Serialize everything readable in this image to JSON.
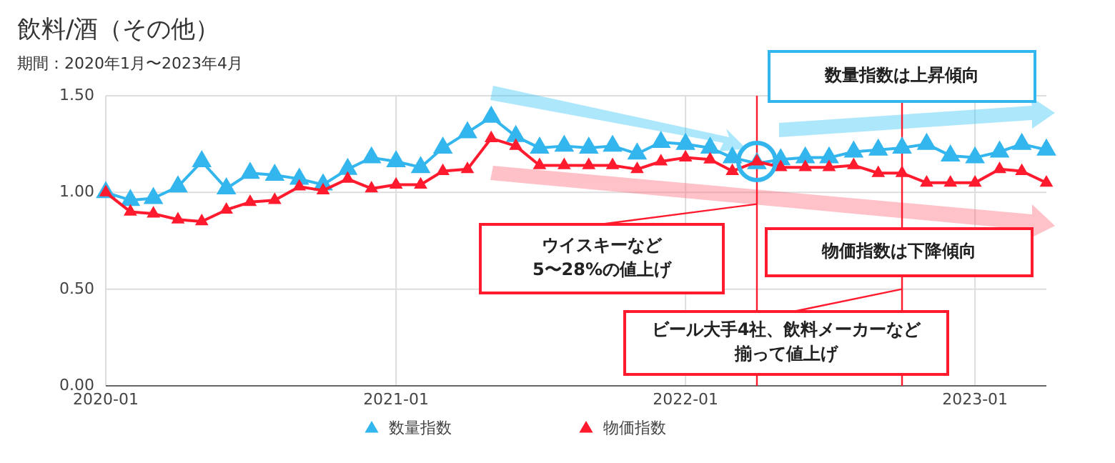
{
  "chart_data": {
    "type": "line",
    "title": "飲料/酒（その他）",
    "subtitle": "期間：2020年1月〜2023年4月",
    "x": [
      "2020-01",
      "2020-02",
      "2020-03",
      "2020-04",
      "2020-05",
      "2020-06",
      "2020-07",
      "2020-08",
      "2020-09",
      "2020-10",
      "2020-11",
      "2020-12",
      "2021-01",
      "2021-02",
      "2021-03",
      "2021-04",
      "2021-05",
      "2021-06",
      "2021-07",
      "2021-08",
      "2021-09",
      "2021-10",
      "2021-11",
      "2021-12",
      "2022-01",
      "2022-02",
      "2022-03",
      "2022-04",
      "2022-05",
      "2022-06",
      "2022-07",
      "2022-08",
      "2022-09",
      "2022-10",
      "2022-11",
      "2022-12",
      "2023-01",
      "2023-02",
      "2023-03",
      "2023-04"
    ],
    "series": [
      {
        "name": "数量指数",
        "color": "#33b5ee",
        "values": [
          1.0,
          0.96,
          0.97,
          1.03,
          1.16,
          1.02,
          1.1,
          1.09,
          1.07,
          1.04,
          1.12,
          1.18,
          1.16,
          1.13,
          1.23,
          1.31,
          1.39,
          1.29,
          1.23,
          1.24,
          1.23,
          1.24,
          1.2,
          1.26,
          1.25,
          1.23,
          1.18,
          1.15,
          1.17,
          1.18,
          1.18,
          1.21,
          1.22,
          1.23,
          1.25,
          1.19,
          1.18,
          1.21,
          1.25,
          1.22
        ]
      },
      {
        "name": "物価指数",
        "color": "#ff1a2e",
        "values": [
          1.0,
          0.9,
          0.89,
          0.86,
          0.85,
          0.91,
          0.95,
          0.96,
          1.03,
          1.01,
          1.07,
          1.02,
          1.04,
          1.04,
          1.11,
          1.12,
          1.28,
          1.24,
          1.14,
          1.14,
          1.14,
          1.14,
          1.12,
          1.16,
          1.18,
          1.17,
          1.11,
          1.16,
          1.13,
          1.13,
          1.13,
          1.14,
          1.1,
          1.1,
          1.05,
          1.05,
          1.05,
          1.12,
          1.11,
          1.05
        ]
      }
    ],
    "xlim": [
      "2020-01",
      "2023-04"
    ],
    "xticks": [
      "2020-01",
      "2021-01",
      "2022-01",
      "2023-01"
    ],
    "ylim": [
      0,
      1.5
    ],
    "yticks": [
      {
        "value": 0,
        "label": "0.00"
      },
      {
        "value": 0.5,
        "label": "0.50"
      },
      {
        "value": 1,
        "label": "1.00"
      },
      {
        "value": 1.5,
        "label": "1.50"
      }
    ],
    "grid": true,
    "legend": "bottom",
    "marker": "triangle",
    "line_style": "solid",
    "ref_lines": [
      {
        "axis": "x",
        "value": "2022-04",
        "color": "#ff1a2e"
      },
      {
        "axis": "x",
        "value": "2022-10",
        "color": "#ff1a2e"
      }
    ],
    "annotations": [
      {
        "text": "ウイスキーなど5〜28%の値上げ",
        "x": "2022-04",
        "y": 0.94
      },
      "数量指数は上昇傾向",
      "物価指数は下降傾向",
      {
        "text": "ビール大手4社、飲料メーカーなど揃って値上げ",
        "x": "2022-10",
        "y": 0.5
      }
    ]
  }
}
